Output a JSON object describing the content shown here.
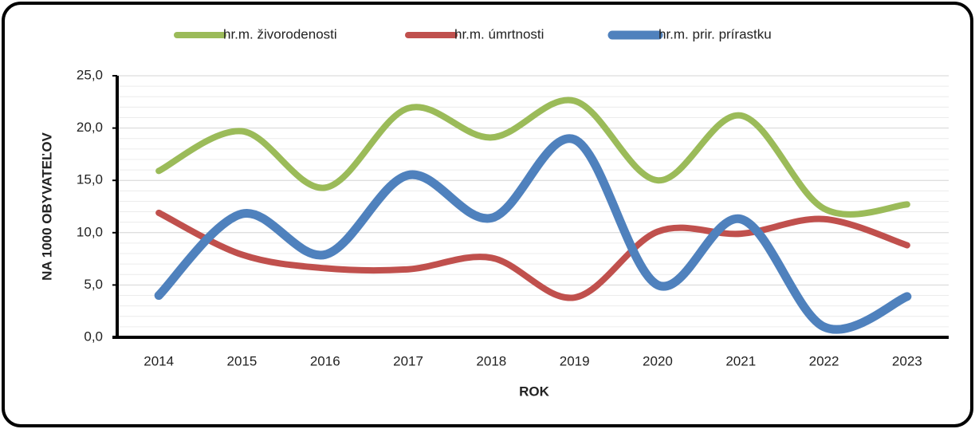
{
  "chart_data": {
    "type": "line",
    "x_label": "ROK",
    "y_label": "NA 1000 OBYVATEĽOV",
    "categories": [
      "2014",
      "2015",
      "2016",
      "2017",
      "2018",
      "2019",
      "2020",
      "2021",
      "2022",
      "2023"
    ],
    "series": [
      {
        "name": "hr.m. živorodenosti",
        "color": "#9bbb59",
        "values": [
          15.9,
          19.7,
          14.3,
          21.9,
          19.1,
          22.6,
          15.0,
          21.2,
          12.3,
          12.7
        ]
      },
      {
        "name": "hr.m. úmrtnosti",
        "color": "#c0504d",
        "values": [
          11.9,
          7.9,
          6.6,
          6.5,
          7.6,
          3.8,
          10.1,
          9.9,
          11.3,
          8.8
        ]
      },
      {
        "name": "hr.m. prir. prírastku",
        "color": "#4f81bd",
        "values": [
          4.0,
          11.8,
          7.9,
          15.5,
          11.4,
          18.9,
          5.0,
          11.3,
          1.0,
          3.9
        ]
      }
    ],
    "ylim": [
      0,
      25
    ],
    "yticks": [
      {
        "value": 0,
        "label": "0,0"
      },
      {
        "value": 5,
        "label": "5,0"
      },
      {
        "value": 10,
        "label": "10,0"
      },
      {
        "value": 15,
        "label": "15,0"
      },
      {
        "value": 20,
        "label": "20,0"
      },
      {
        "value": 25,
        "label": "25,0"
      }
    ],
    "minor_yticks": [
      1,
      2,
      3,
      4,
      6,
      7,
      8,
      9,
      11,
      12,
      13,
      14,
      16,
      17,
      18,
      19,
      21,
      22,
      23,
      24
    ],
    "grid": true,
    "smooth": true,
    "legend": "top"
  }
}
